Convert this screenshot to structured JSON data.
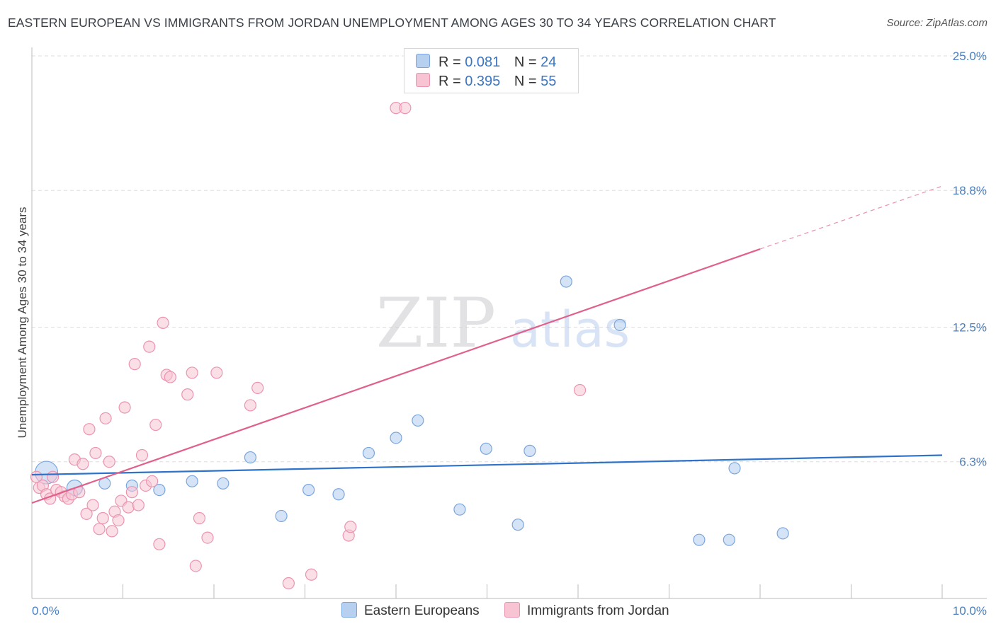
{
  "header": {
    "title": "EASTERN EUROPEAN VS IMMIGRANTS FROM JORDAN UNEMPLOYMENT AMONG AGES 30 TO 34 YEARS CORRELATION CHART",
    "source": "Source: ZipAtlas.com"
  },
  "watermark": {
    "part1": "ZIP",
    "part2": "atlas"
  },
  "legend": {
    "r_label": "R =",
    "n_label": "N =",
    "blue_r": "0.081",
    "blue_n": "24",
    "pink_r": "0.395",
    "pink_n": "55"
  },
  "colors": {
    "blue_fill": "#b8d0f0",
    "blue_stroke": "#7aa6dc",
    "blue_line": "#2f72c9",
    "pink_fill": "#f8c4d4",
    "pink_stroke": "#eb94b0",
    "pink_line": "#e0608a"
  },
  "chart_data": {
    "type": "scatter",
    "title": "EASTERN EUROPEAN VS IMMIGRANTS FROM JORDAN UNEMPLOYMENT AMONG AGES 30 TO 34 YEARS CORRELATION CHART",
    "xlabel": "",
    "ylabel": "Unemployment Among Ages 30 to 34 years",
    "xlim": [
      0,
      10
    ],
    "ylim": [
      0,
      25
    ],
    "x_tick_labels": [
      "0.0%",
      "10.0%"
    ],
    "y_ticks": [
      6.3,
      12.5,
      18.8,
      25.0
    ],
    "y_tick_labels": [
      "6.3%",
      "12.5%",
      "18.8%",
      "25.0%"
    ],
    "legend_position": "top-center",
    "series": [
      {
        "name": "Eastern Europeans",
        "R": 0.081,
        "N": 24,
        "trend": {
          "x0": 0,
          "y0": 5.7,
          "x1": 10,
          "y1": 6.6
        },
        "points": [
          [
            0.16,
            5.8
          ],
          [
            0.47,
            5.1
          ],
          [
            0.8,
            5.3
          ],
          [
            1.1,
            5.2
          ],
          [
            1.4,
            5.0
          ],
          [
            1.76,
            5.4
          ],
          [
            2.1,
            5.3
          ],
          [
            2.4,
            6.5
          ],
          [
            2.74,
            3.8
          ],
          [
            3.04,
            5.0
          ],
          [
            3.37,
            4.8
          ],
          [
            3.7,
            6.7
          ],
          [
            4.0,
            7.4
          ],
          [
            4.24,
            8.2
          ],
          [
            4.7,
            4.1
          ],
          [
            4.99,
            6.9
          ],
          [
            5.34,
            3.4
          ],
          [
            5.47,
            6.8
          ],
          [
            5.87,
            14.6
          ],
          [
            6.46,
            12.6
          ],
          [
            7.33,
            2.7
          ],
          [
            7.66,
            2.7
          ],
          [
            7.72,
            6.0
          ],
          [
            8.25,
            3.0
          ]
        ]
      },
      {
        "name": "Immigrants from Jordan",
        "R": 0.395,
        "N": 55,
        "trend": {
          "x0": 0,
          "y0": 4.4,
          "x1": 8.0,
          "y1": 16.1
        },
        "trend_dashed": {
          "x0": 8.0,
          "y0": 16.1,
          "x1": 10,
          "y1": 19.0
        },
        "points": [
          [
            0.05,
            5.6
          ],
          [
            0.08,
            5.1
          ],
          [
            0.12,
            5.2
          ],
          [
            0.16,
            4.8
          ],
          [
            0.2,
            4.6
          ],
          [
            0.23,
            5.6
          ],
          [
            0.27,
            5.0
          ],
          [
            0.32,
            4.9
          ],
          [
            0.36,
            4.7
          ],
          [
            0.4,
            4.6
          ],
          [
            0.44,
            4.8
          ],
          [
            0.47,
            6.4
          ],
          [
            0.52,
            4.9
          ],
          [
            0.56,
            6.2
          ],
          [
            0.6,
            3.9
          ],
          [
            0.63,
            7.8
          ],
          [
            0.67,
            4.3
          ],
          [
            0.7,
            6.7
          ],
          [
            0.74,
            3.2
          ],
          [
            0.78,
            3.7
          ],
          [
            0.81,
            8.3
          ],
          [
            0.85,
            6.3
          ],
          [
            0.88,
            3.1
          ],
          [
            0.91,
            4.0
          ],
          [
            0.95,
            3.6
          ],
          [
            0.98,
            4.5
          ],
          [
            1.02,
            8.8
          ],
          [
            1.06,
            4.2
          ],
          [
            1.1,
            4.9
          ],
          [
            1.13,
            10.8
          ],
          [
            1.17,
            4.3
          ],
          [
            1.21,
            6.6
          ],
          [
            1.25,
            5.2
          ],
          [
            1.29,
            11.6
          ],
          [
            1.32,
            5.4
          ],
          [
            1.36,
            8.0
          ],
          [
            1.4,
            2.5
          ],
          [
            1.44,
            12.7
          ],
          [
            1.48,
            10.3
          ],
          [
            1.52,
            10.2
          ],
          [
            1.71,
            9.4
          ],
          [
            1.76,
            10.4
          ],
          [
            1.8,
            1.5
          ],
          [
            1.84,
            3.7
          ],
          [
            1.93,
            2.8
          ],
          [
            2.03,
            10.4
          ],
          [
            2.4,
            8.9
          ],
          [
            2.48,
            9.7
          ],
          [
            2.82,
            0.7
          ],
          [
            3.07,
            1.1
          ],
          [
            3.48,
            2.9
          ],
          [
            3.5,
            3.3
          ],
          [
            4.0,
            22.6
          ],
          [
            4.1,
            22.6
          ],
          [
            6.02,
            9.6
          ]
        ]
      }
    ]
  }
}
